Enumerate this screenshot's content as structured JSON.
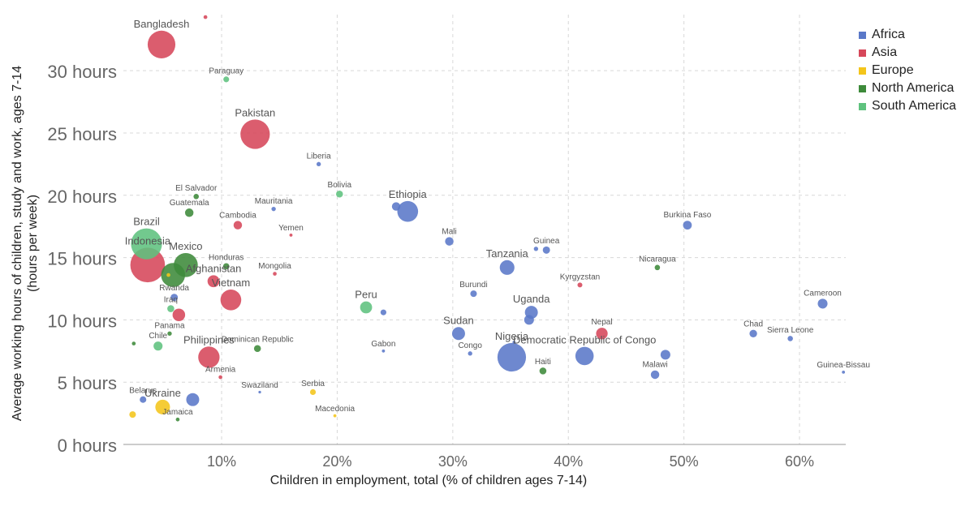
{
  "chart_data": {
    "type": "scatter",
    "title": "",
    "xlabel": "Children in employment, total (% of children ages 7-14)",
    "ylabel": "Average working hours of children, study and work, ages 7-14 (hours per week)",
    "xlim": [
      1.5,
      64
    ],
    "ylim": [
      0,
      34.5
    ],
    "x_ticks": [
      10,
      20,
      30,
      40,
      50,
      60
    ],
    "x_tick_labels": [
      "10%",
      "20%",
      "30%",
      "40%",
      "50%",
      "60%"
    ],
    "y_ticks": [
      0,
      5,
      10,
      15,
      20,
      25,
      30
    ],
    "y_tick_labels": [
      "0 hours",
      "5 hours",
      "10 hours",
      "15 hours",
      "20 hours",
      "25 hours",
      "30 hours"
    ],
    "grid": true,
    "legend_position": "right",
    "regions": [
      {
        "name": "Africa",
        "color": "#5a78c8"
      },
      {
        "name": "Asia",
        "color": "#d6475a"
      },
      {
        "name": "Europe",
        "color": "#f4c51a"
      },
      {
        "name": "North America",
        "color": "#3d8a3a"
      },
      {
        "name": "South America",
        "color": "#5fc27e"
      }
    ],
    "points": [
      {
        "label": "",
        "x": 8.6,
        "y": 34.3,
        "region": "Asia",
        "pop": 3
      },
      {
        "label": "Bangladesh",
        "x": 4.8,
        "y": 32.1,
        "region": "Asia",
        "pop": 160
      },
      {
        "label": "Paraguay",
        "x": 10.4,
        "y": 29.3,
        "region": "South America",
        "pop": 7
      },
      {
        "label": "Pakistan",
        "x": 12.9,
        "y": 24.9,
        "region": "Asia",
        "pop": 180
      },
      {
        "label": "Liberia",
        "x": 18.4,
        "y": 22.5,
        "region": "Africa",
        "pop": 4
      },
      {
        "label": "Bolivia",
        "x": 20.2,
        "y": 20.1,
        "region": "South America",
        "pop": 10
      },
      {
        "label": "El Salvador",
        "x": 7.8,
        "y": 19.9,
        "region": "North America",
        "pop": 6
      },
      {
        "label": "Ethiopia",
        "x": 26.1,
        "y": 18.7,
        "region": "Africa",
        "pop": 90
      },
      {
        "label": "",
        "x": 25.1,
        "y": 19.1,
        "region": "Africa",
        "pop": 15
      },
      {
        "label": "Guatemala",
        "x": 7.2,
        "y": 18.6,
        "region": "North America",
        "pop": 15
      },
      {
        "label": "Mauritania",
        "x": 14.5,
        "y": 18.9,
        "region": "Africa",
        "pop": 4
      },
      {
        "label": "Cambodia",
        "x": 11.4,
        "y": 17.6,
        "region": "Asia",
        "pop": 15
      },
      {
        "label": "Burkina Faso",
        "x": 50.3,
        "y": 17.6,
        "region": "Africa",
        "pop": 16
      },
      {
        "label": "Yemen",
        "x": 16.0,
        "y": 16.8,
        "region": "Asia",
        "pop": 2
      },
      {
        "label": "Mali",
        "x": 29.7,
        "y": 16.3,
        "region": "Africa",
        "pop": 15
      },
      {
        "label": "Brazil",
        "x": 3.5,
        "y": 16.1,
        "region": "South America",
        "pop": 200
      },
      {
        "label": "Guinea",
        "x": 38.1,
        "y": 15.6,
        "region": "Africa",
        "pop": 11
      },
      {
        "label": "",
        "x": 37.2,
        "y": 15.7,
        "region": "Africa",
        "pop": 4
      },
      {
        "label": "Indonesia",
        "x": 3.6,
        "y": 14.4,
        "region": "Asia",
        "pop": 250
      },
      {
        "label": "Mexico",
        "x": 6.9,
        "y": 14.4,
        "region": "North America",
        "pop": 120
      },
      {
        "label": "Tanzania",
        "x": 34.7,
        "y": 14.2,
        "region": "Africa",
        "pop": 45
      },
      {
        "label": "Honduras",
        "x": 10.4,
        "y": 14.3,
        "region": "North America",
        "pop": 8
      },
      {
        "label": "Nicaragua",
        "x": 47.7,
        "y": 14.2,
        "region": "North America",
        "pop": 6
      },
      {
        "label": "Mongolia",
        "x": 14.6,
        "y": 13.7,
        "region": "Asia",
        "pop": 3
      },
      {
        "label": "",
        "x": 5.8,
        "y": 13.6,
        "region": "North America",
        "pop": 120
      },
      {
        "label": "",
        "x": 5.4,
        "y": 13.6,
        "region": "Europe",
        "pop": 3
      },
      {
        "label": "Afghanistan",
        "x": 9.3,
        "y": 13.1,
        "region": "Asia",
        "pop": 30
      },
      {
        "label": "Kyrgyzstan",
        "x": 41.0,
        "y": 12.8,
        "region": "Asia",
        "pop": 5
      },
      {
        "label": "Burundi",
        "x": 31.8,
        "y": 12.1,
        "region": "Africa",
        "pop": 9
      },
      {
        "label": "Rwanda",
        "x": 5.9,
        "y": 11.8,
        "region": "Africa",
        "pop": 11
      },
      {
        "label": "Vietnam",
        "x": 10.8,
        "y": 11.6,
        "region": "Asia",
        "pop": 90
      },
      {
        "label": "Cameroon",
        "x": 62.0,
        "y": 11.3,
        "region": "Africa",
        "pop": 20
      },
      {
        "label": "Peru",
        "x": 22.5,
        "y": 11.0,
        "region": "South America",
        "pop": 30
      },
      {
        "label": "Iraq",
        "x": 5.6,
        "y": 10.9,
        "region": "South America",
        "pop": 10
      },
      {
        "label": "Uganda",
        "x": 36.8,
        "y": 10.6,
        "region": "Africa",
        "pop": 35
      },
      {
        "label": "",
        "x": 24.0,
        "y": 10.6,
        "region": "Africa",
        "pop": 7
      },
      {
        "label": "",
        "x": 6.3,
        "y": 10.4,
        "region": "Asia",
        "pop": 33
      },
      {
        "label": "",
        "x": 36.6,
        "y": 10.0,
        "region": "Africa",
        "pop": 20
      },
      {
        "label": "Panama",
        "x": 5.5,
        "y": 8.9,
        "region": "North America",
        "pop": 4
      },
      {
        "label": "Sudan",
        "x": 30.5,
        "y": 8.9,
        "region": "Africa",
        "pop": 35
      },
      {
        "label": "Chad",
        "x": 56.0,
        "y": 8.9,
        "region": "Africa",
        "pop": 12
      },
      {
        "label": "Nepal",
        "x": 42.9,
        "y": 8.9,
        "region": "Asia",
        "pop": 28
      },
      {
        "label": "Sierra Leone",
        "x": 59.2,
        "y": 8.5,
        "region": "Africa",
        "pop": 6
      },
      {
        "label": "",
        "x": 2.4,
        "y": 8.1,
        "region": "North America",
        "pop": 3
      },
      {
        "label": "Chile",
        "x": 4.5,
        "y": 7.9,
        "region": "South America",
        "pop": 17
      },
      {
        "label": "Dominican Republic",
        "x": 13.1,
        "y": 7.7,
        "region": "North America",
        "pop": 10
      },
      {
        "label": "Philippines",
        "x": 8.9,
        "y": 7.0,
        "region": "Asia",
        "pop": 95
      },
      {
        "label": "Gabon",
        "x": 24.0,
        "y": 7.5,
        "region": "Africa",
        "pop": 2
      },
      {
        "label": "Nigeria",
        "x": 35.1,
        "y": 7.0,
        "region": "Africa",
        "pop": 170
      },
      {
        "label": "Congo",
        "x": 31.5,
        "y": 7.3,
        "region": "Africa",
        "pop": 4
      },
      {
        "label": "",
        "x": 35.3,
        "y": 8.2,
        "region": "Africa",
        "pop": 2
      },
      {
        "label": "Democratic Republic of Congo",
        "x": 41.4,
        "y": 7.1,
        "region": "Africa",
        "pop": 70
      },
      {
        "label": "Malawi",
        "x": 47.5,
        "y": 5.6,
        "region": "Africa",
        "pop": 15
      },
      {
        "label": "",
        "x": 48.4,
        "y": 7.2,
        "region": "Africa",
        "pop": 20
      },
      {
        "label": "Haiti",
        "x": 37.8,
        "y": 5.9,
        "region": "North America",
        "pop": 10
      },
      {
        "label": "Guinea-Bissau",
        "x": 63.8,
        "y": 5.8,
        "region": "Africa",
        "pop": 2
      },
      {
        "label": "Armenia",
        "x": 9.9,
        "y": 5.4,
        "region": "Asia",
        "pop": 3
      },
      {
        "label": "Swaziland",
        "x": 13.3,
        "y": 4.2,
        "region": "Africa",
        "pop": 1.5
      },
      {
        "label": "Serbia",
        "x": 17.9,
        "y": 4.2,
        "region": "Europe",
        "pop": 7
      },
      {
        "label": "Ukraine",
        "x": 4.9,
        "y": 3.0,
        "region": "Europe",
        "pop": 45
      },
      {
        "label": "",
        "x": 7.5,
        "y": 3.6,
        "region": "Africa",
        "pop": 35
      },
      {
        "label": "Belarus",
        "x": 3.2,
        "y": 3.6,
        "region": "Africa",
        "pop": 9
      },
      {
        "label": "",
        "x": 2.3,
        "y": 2.4,
        "region": "Europe",
        "pop": 9
      },
      {
        "label": "Jamaica",
        "x": 6.2,
        "y": 2.0,
        "region": "North America",
        "pop": 3
      },
      {
        "label": "Macedonia",
        "x": 19.8,
        "y": 2.3,
        "region": "Europe",
        "pop": 2
      }
    ]
  }
}
